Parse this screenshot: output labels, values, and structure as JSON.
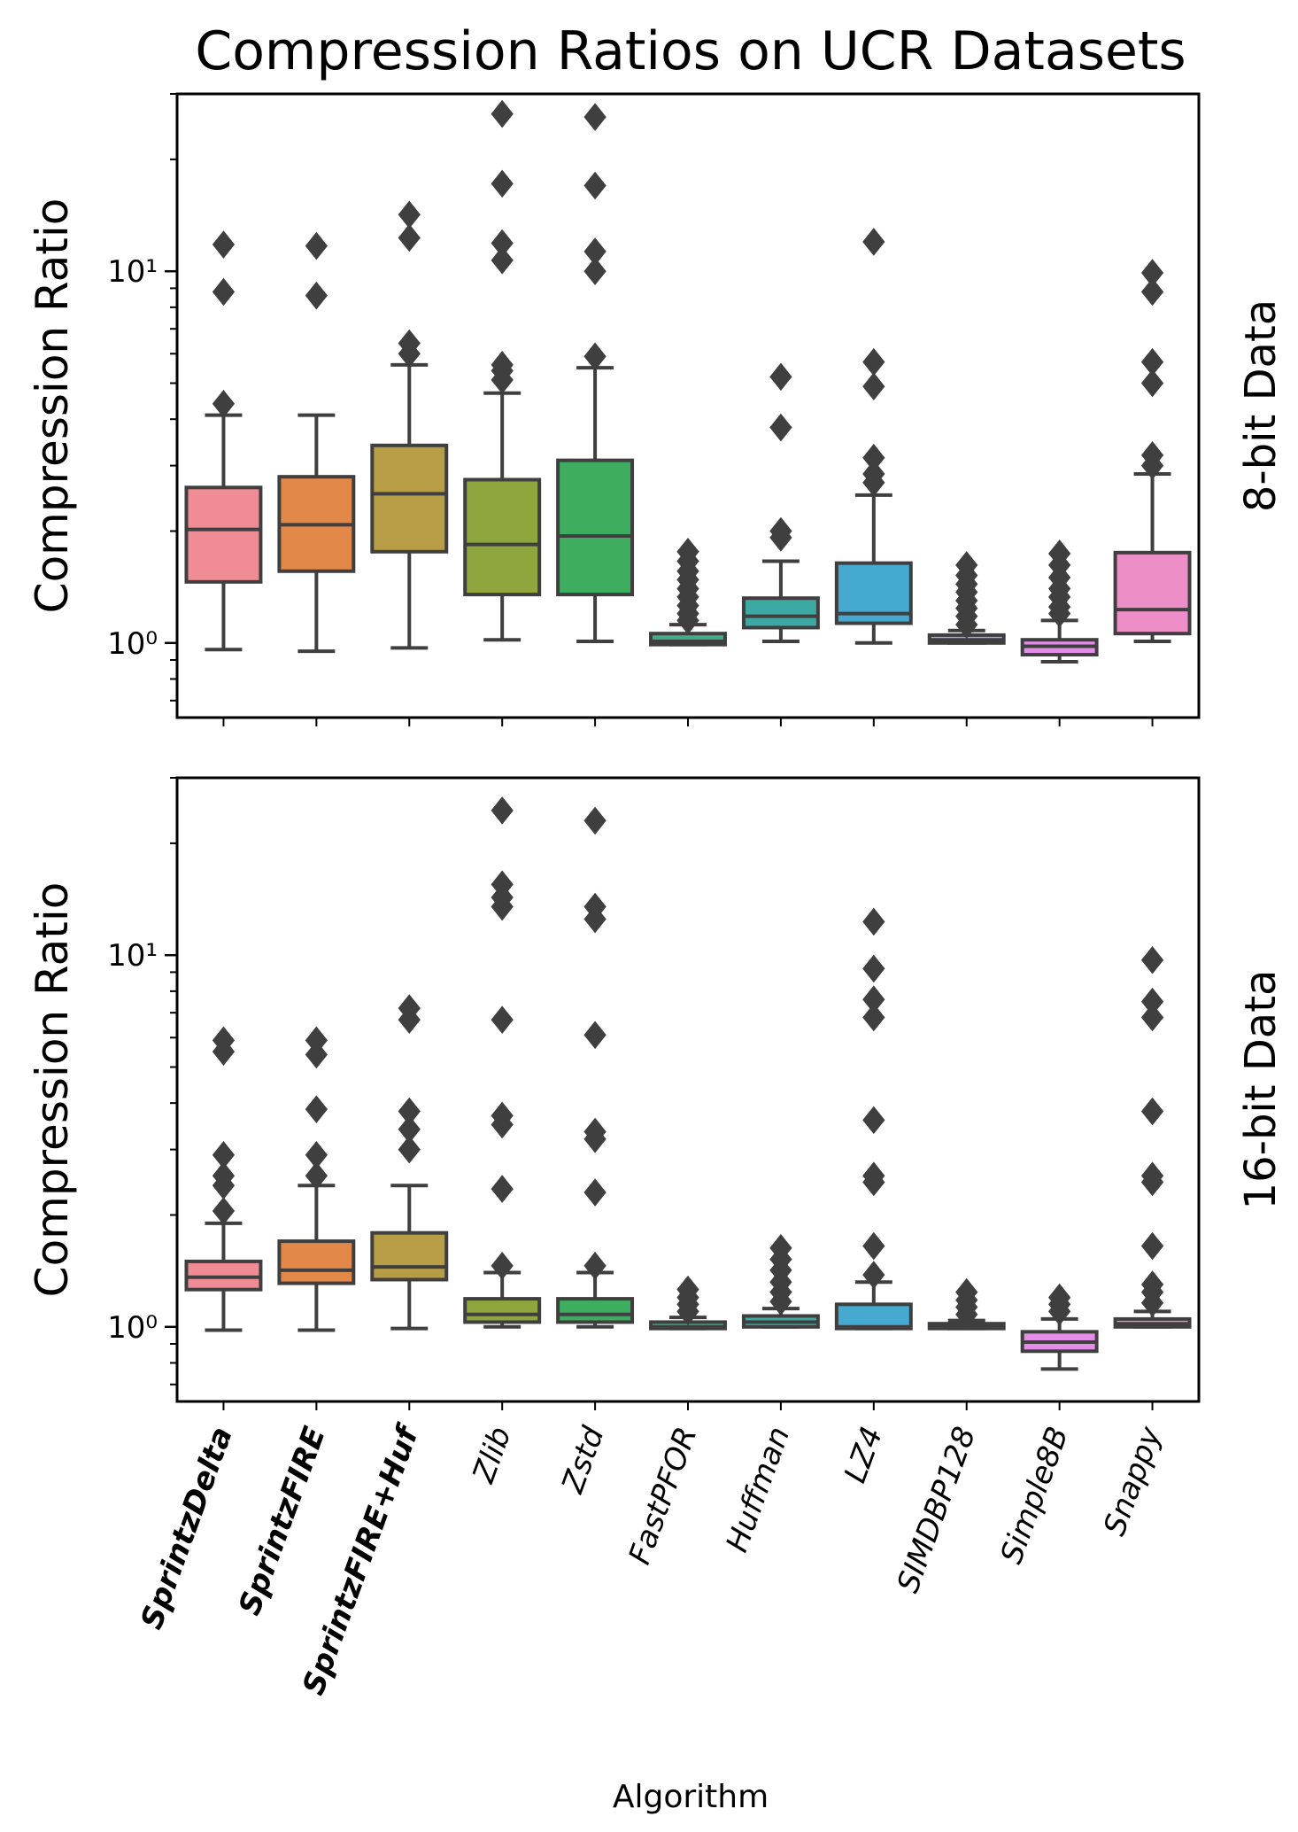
{
  "chart_data": {
    "type": "box",
    "title": "Compression Ratios on UCR Datasets",
    "xlabel": "Algorithm",
    "ylabel": "Compression Ratio",
    "yscale": "log",
    "ylim": [
      0.63,
      30
    ],
    "grid": false,
    "y_tick_labels": [
      "10⁰",
      "10¹"
    ],
    "categories": [
      "SprintzDelta",
      "SprintzFIRE",
      "SprintzFIRE+Huf",
      "Zlib",
      "Zstd",
      "FastPFOR",
      "Huffman",
      "LZ4",
      "SIMDBP128",
      "Simple8B",
      "Snappy"
    ],
    "bold_categories": [
      "SprintzDelta",
      "SprintzFIRE",
      "SprintzFIRE+Huf"
    ],
    "colors": [
      "#f08c96",
      "#e2894a",
      "#b79d45",
      "#8fa63e",
      "#3fad60",
      "#41ac8c",
      "#3ea8a3",
      "#46a9d0",
      "#a5a8ed",
      "#e48ee8",
      "#ee8ec8"
    ],
    "panels": [
      {
        "row_label": "8-bit Data",
        "boxes": [
          {
            "whislo": 0.96,
            "q1": 1.46,
            "med": 2.02,
            "q3": 2.62,
            "whishi": 4.1,
            "fliers": [
              4.4,
              8.8,
              11.8
            ]
          },
          {
            "whislo": 0.95,
            "q1": 1.56,
            "med": 2.08,
            "q3": 2.8,
            "whishi": 4.1,
            "fliers": [
              8.6,
              11.7
            ]
          },
          {
            "whislo": 0.97,
            "q1": 1.76,
            "med": 2.52,
            "q3": 3.4,
            "whishi": 5.6,
            "fliers": [
              6.0,
              6.4,
              12.3,
              14.2
            ]
          },
          {
            "whislo": 1.02,
            "q1": 1.35,
            "med": 1.84,
            "q3": 2.75,
            "whishi": 4.7,
            "fliers": [
              5.1,
              5.4,
              5.6,
              10.7,
              11.9,
              17.2,
              26.5
            ]
          },
          {
            "whislo": 1.01,
            "q1": 1.35,
            "med": 1.94,
            "q3": 3.1,
            "whishi": 5.5,
            "fliers": [
              5.9,
              10.0,
              11.3,
              17.0,
              26.0
            ]
          },
          {
            "whislo": 0.99,
            "q1": 0.99,
            "med": 1.01,
            "q3": 1.06,
            "whishi": 1.12,
            "fliers": [
              1.15,
              1.2,
              1.26,
              1.33,
              1.4,
              1.48,
              1.56,
              1.66,
              1.76
            ]
          },
          {
            "whislo": 1.01,
            "q1": 1.1,
            "med": 1.18,
            "q3": 1.32,
            "whishi": 1.66,
            "fliers": [
              1.92,
              2.0,
              3.8,
              5.2
            ]
          },
          {
            "whislo": 1.0,
            "q1": 1.13,
            "med": 1.2,
            "q3": 1.64,
            "whishi": 2.5,
            "fliers": [
              2.7,
              2.85,
              3.15,
              4.9,
              5.7,
              12.0
            ]
          },
          {
            "whislo": 1.0,
            "q1": 1.0,
            "med": 1.02,
            "q3": 1.05,
            "whishi": 1.08,
            "fliers": [
              1.12,
              1.18,
              1.24,
              1.3,
              1.37,
              1.44,
              1.52,
              1.62
            ]
          },
          {
            "whislo": 0.89,
            "q1": 0.93,
            "med": 0.98,
            "q3": 1.02,
            "whishi": 1.15,
            "fliers": [
              1.2,
              1.25,
              1.33,
              1.4,
              1.5,
              1.62,
              1.74
            ]
          },
          {
            "whislo": 1.01,
            "q1": 1.06,
            "med": 1.23,
            "q3": 1.75,
            "whishi": 2.85,
            "fliers": [
              3.0,
              3.2,
              5.0,
              5.7,
              8.8,
              9.9
            ]
          }
        ]
      },
      {
        "row_label": "16-bit Data",
        "boxes": [
          {
            "whislo": 0.98,
            "q1": 1.26,
            "med": 1.36,
            "q3": 1.5,
            "whishi": 1.9,
            "fliers": [
              2.05,
              2.4,
              2.55,
              2.9,
              5.5,
              5.9
            ]
          },
          {
            "whislo": 0.98,
            "q1": 1.31,
            "med": 1.42,
            "q3": 1.7,
            "whishi": 2.4,
            "fliers": [
              2.55,
              2.9,
              3.85,
              5.4,
              5.9
            ]
          },
          {
            "whislo": 0.99,
            "q1": 1.34,
            "med": 1.45,
            "q3": 1.79,
            "whishi": 2.4,
            "fliers": [
              3.0,
              3.4,
              3.8,
              6.7,
              7.2
            ]
          },
          {
            "whislo": 1.0,
            "q1": 1.03,
            "med": 1.08,
            "q3": 1.19,
            "whishi": 1.4,
            "fliers": [
              1.46,
              2.35,
              3.5,
              3.7,
              6.7,
              13.5,
              14.3,
              15.5,
              24.5
            ]
          },
          {
            "whislo": 1.0,
            "q1": 1.03,
            "med": 1.08,
            "q3": 1.19,
            "whishi": 1.4,
            "fliers": [
              1.46,
              2.3,
              3.2,
              3.35,
              6.1,
              12.5,
              13.5,
              23.0
            ]
          },
          {
            "whislo": 0.99,
            "q1": 0.99,
            "med": 1.0,
            "q3": 1.03,
            "whishi": 1.06,
            "fliers": [
              1.1,
              1.15,
              1.2,
              1.26
            ]
          },
          {
            "whislo": 1.0,
            "q1": 1.0,
            "med": 1.03,
            "q3": 1.07,
            "whishi": 1.12,
            "fliers": [
              1.17,
              1.24,
              1.32,
              1.42,
              1.52,
              1.63
            ]
          },
          {
            "whislo": 0.99,
            "q1": 0.99,
            "med": 1.0,
            "q3": 1.15,
            "whishi": 1.32,
            "fliers": [
              1.38,
              1.65,
              2.45,
              2.55,
              3.6,
              6.8,
              7.6,
              9.2,
              12.3
            ]
          },
          {
            "whislo": 0.99,
            "q1": 0.99,
            "med": 1.0,
            "q3": 1.02,
            "whishi": 1.04,
            "fliers": [
              1.08,
              1.13,
              1.18,
              1.24
            ]
          },
          {
            "whislo": 0.77,
            "q1": 0.86,
            "med": 0.91,
            "q3": 0.97,
            "whishi": 1.05,
            "fliers": [
              1.1,
              1.15,
              1.2
            ]
          },
          {
            "whislo": 1.0,
            "q1": 1.0,
            "med": 1.02,
            "q3": 1.05,
            "whishi": 1.1,
            "fliers": [
              1.16,
              1.24,
              1.3,
              1.65,
              2.45,
              2.55,
              3.8,
              6.8,
              7.5,
              9.7
            ]
          }
        ]
      }
    ]
  }
}
